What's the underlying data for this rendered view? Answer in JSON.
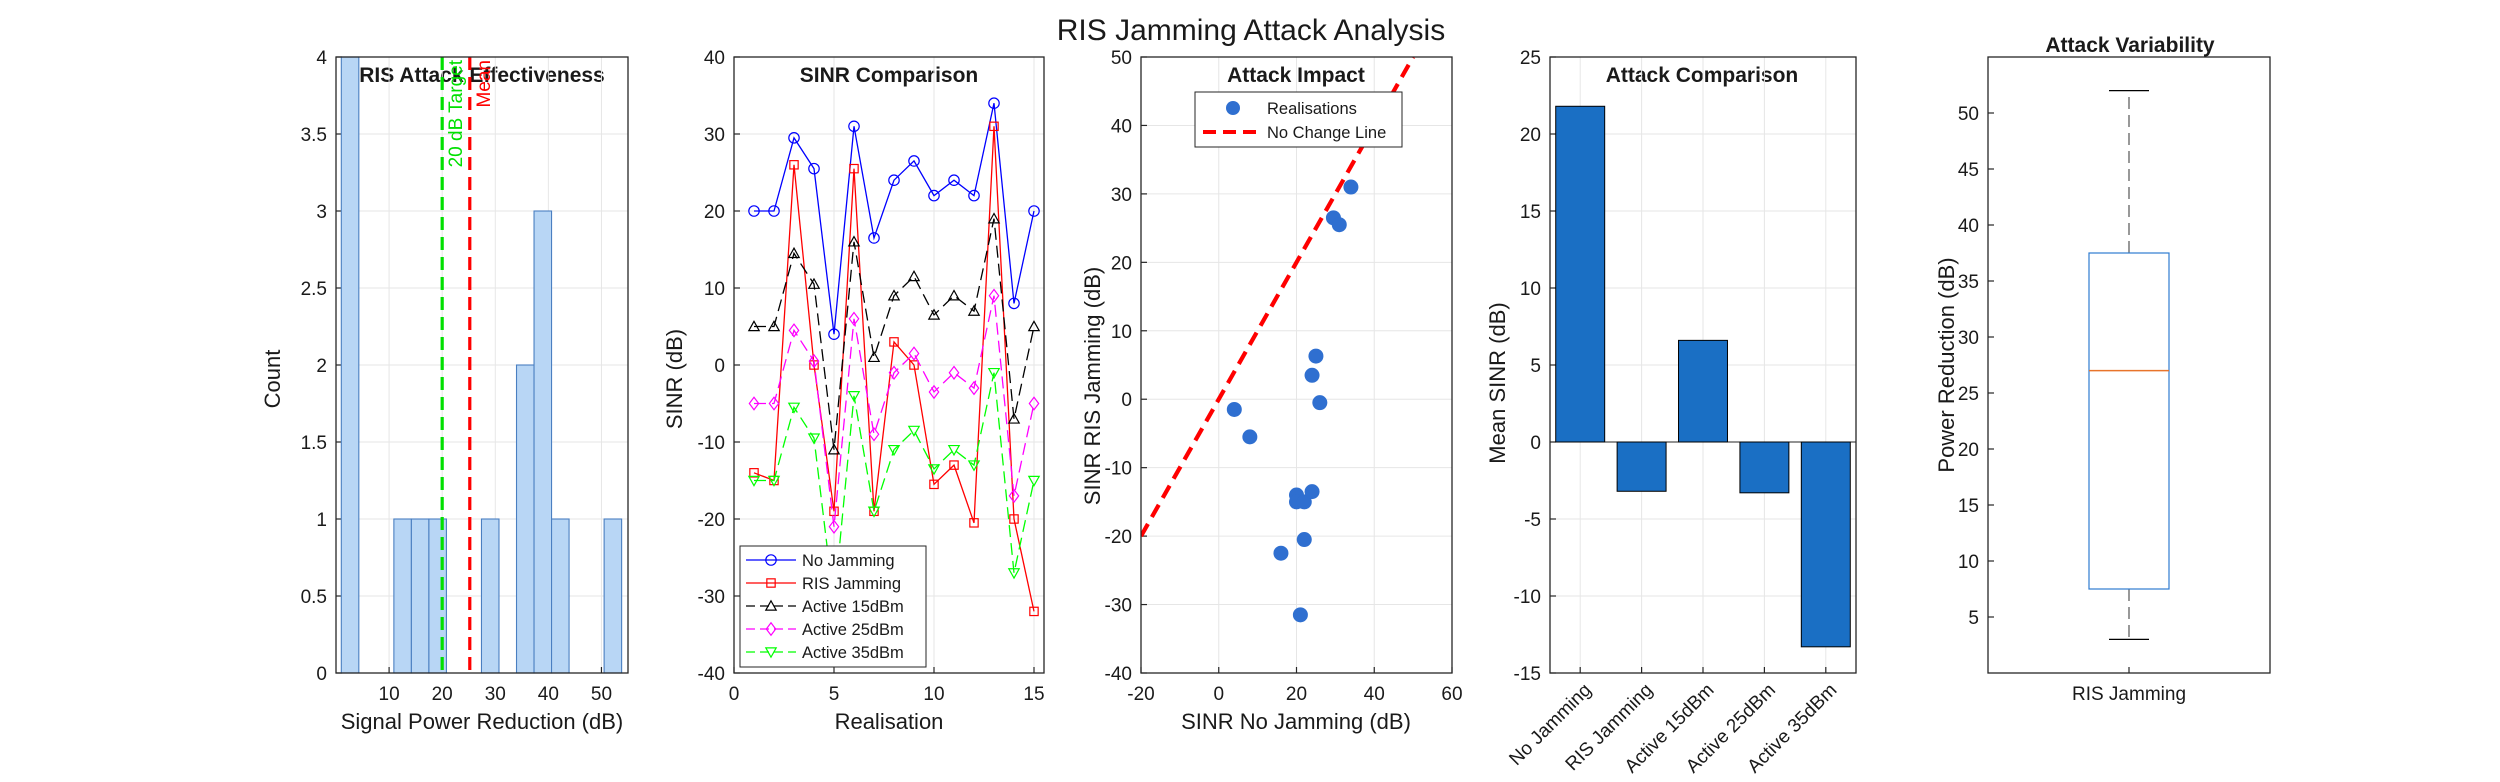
{
  "figure_title": "RIS Jamming Attack Analysis",
  "chart_data": [
    {
      "type": "bar",
      "subtype": "histogram",
      "title": "RIS Attack Effectiveness",
      "xlabel": "Signal Power Reduction (dB)",
      "ylabel": "Count",
      "xlim": [
        0,
        55
      ],
      "ylim": [
        0,
        4
      ],
      "xticks": [
        10,
        20,
        30,
        40,
        50
      ],
      "yticks": [
        0,
        0.5,
        1,
        1.5,
        2,
        2.5,
        3,
        3.5,
        4
      ],
      "bin_width": 3.3,
      "bins": [
        {
          "start": 1.0,
          "count": 4
        },
        {
          "start": 4.3,
          "count": 0
        },
        {
          "start": 7.6,
          "count": 0
        },
        {
          "start": 10.9,
          "count": 1
        },
        {
          "start": 14.2,
          "count": 1
        },
        {
          "start": 17.5,
          "count": 1
        },
        {
          "start": 20.8,
          "count": 0
        },
        {
          "start": 24.1,
          "count": 0
        },
        {
          "start": 27.4,
          "count": 1
        },
        {
          "start": 30.7,
          "count": 0
        },
        {
          "start": 34.0,
          "count": 2
        },
        {
          "start": 37.3,
          "count": 3
        },
        {
          "start": 40.6,
          "count": 1
        },
        {
          "start": 43.9,
          "count": 0
        },
        {
          "start": 47.2,
          "count": 0
        },
        {
          "start": 50.5,
          "count": 1
        }
      ],
      "vlines": [
        {
          "x": 20,
          "label": "20 dB Target",
          "color": "#00e000"
        },
        {
          "x": 25.2,
          "label": "Mean",
          "color": "#ff0000"
        }
      ],
      "colors": {
        "bar_fill": "#b8d6f5",
        "bar_edge": "#4a7fc1"
      },
      "grid": true
    },
    {
      "type": "line",
      "title": "SINR Comparison",
      "xlabel": "Realisation",
      "ylabel": "SINR (dB)",
      "xlim": [
        0,
        15.5
      ],
      "ylim": [
        -40,
        40
      ],
      "xticks": [
        0,
        5,
        10,
        15
      ],
      "yticks": [
        -40,
        -30,
        -20,
        -10,
        0,
        10,
        20,
        30,
        40
      ],
      "x": [
        1,
        2,
        3,
        4,
        5,
        6,
        7,
        8,
        9,
        10,
        11,
        12,
        13,
        14,
        15
      ],
      "series": [
        {
          "name": "No Jamming",
          "values": [
            20,
            20,
            29.5,
            25.5,
            4,
            31,
            16.5,
            24,
            26.5,
            22,
            24,
            22,
            34,
            8,
            20
          ],
          "color": "#0000ff",
          "dash": "",
          "marker": "circle"
        },
        {
          "name": "RIS Jamming",
          "values": [
            -14,
            -15,
            26,
            0,
            -19,
            25.5,
            -19,
            3,
            0,
            -15.5,
            -13,
            -20.5,
            31,
            -20,
            -32
          ],
          "color": "#ff0000",
          "dash": "",
          "marker": "square"
        },
        {
          "name": "Active 15dBm",
          "values": [
            5,
            5,
            14.5,
            10.5,
            -11,
            16,
            1,
            9,
            11.5,
            6.5,
            9,
            7,
            19,
            -7,
            5
          ],
          "color": "#000000",
          "dash": "12,6",
          "marker": "triangle-up"
        },
        {
          "name": "Active 25dBm",
          "values": [
            -5,
            -5,
            4.5,
            0.5,
            -21,
            6,
            -9,
            -1,
            1.5,
            -3.5,
            -1,
            -3,
            9,
            -17,
            -5
          ],
          "color": "#ff00ff",
          "dash": "12,6",
          "marker": "diamond"
        },
        {
          "name": "Active 35dBm",
          "values": [
            -15,
            -15,
            -5.5,
            -9.5,
            -31,
            -4,
            -19,
            -11,
            -8.5,
            -13.5,
            -11,
            -13,
            -1,
            -27,
            -15
          ],
          "color": "#00ff00",
          "dash": "12,6",
          "marker": "triangle-down"
        }
      ],
      "legend": "bottom-left",
      "grid": true
    },
    {
      "type": "scatter",
      "title": "Attack Impact",
      "xlabel": "SINR No Jamming (dB)",
      "ylabel": "SINR RIS Jamming (dB)",
      "xlim": [
        -20,
        60
      ],
      "ylim": [
        -40,
        50
      ],
      "xticks": [
        -20,
        0,
        20,
        40,
        60
      ],
      "yticks": [
        -40,
        -30,
        -20,
        -10,
        0,
        10,
        20,
        30,
        40,
        50
      ],
      "series": [
        {
          "name": "Realisations",
          "color": "#2f6fd0",
          "points": [
            [
              4,
              -1.5
            ],
            [
              8,
              -5.5
            ],
            [
              16,
              -22.5
            ],
            [
              20,
              -14
            ],
            [
              20,
              -15
            ],
            [
              21,
              -31.5
            ],
            [
              22,
              -20.5
            ],
            [
              22,
              -15
            ],
            [
              24,
              -13.5
            ],
            [
              24,
              3.5
            ],
            [
              25,
              6.3
            ],
            [
              26,
              -0.5
            ],
            [
              29.5,
              26.5
            ],
            [
              31,
              25.5
            ],
            [
              34,
              31
            ]
          ]
        },
        {
          "name": "No Change Line",
          "color": "#ff0000",
          "dash": "14,8",
          "line": [
            [
              -20,
              -20
            ],
            [
              50,
              50
            ]
          ]
        }
      ],
      "legend": "top",
      "grid": true
    },
    {
      "type": "bar",
      "title": "Attack Comparison",
      "xlabel": "",
      "ylabel": "Mean SINR (dB)",
      "ylim": [
        -15,
        25
      ],
      "yticks": [
        -15,
        -10,
        -5,
        0,
        5,
        10,
        15,
        20,
        25
      ],
      "categories": [
        "No Jamming",
        "RIS Jamming",
        "Active 15dBm",
        "Active 25dBm",
        "Active 35dBm"
      ],
      "values": [
        21.8,
        -3.2,
        6.6,
        -3.3,
        -13.3
      ],
      "color": "#1a6fc4",
      "grid": true
    },
    {
      "type": "box",
      "title": "Attack Variability",
      "xlabel": "",
      "ylabel": "Power Reduction (dB)",
      "ylim": [
        0,
        55
      ],
      "yticks": [
        5,
        10,
        15,
        20,
        25,
        30,
        35,
        40,
        45,
        50
      ],
      "categories": [
        "RIS Jamming"
      ],
      "box": {
        "min": 3,
        "q1": 7.5,
        "median": 27,
        "q3": 37.5,
        "max": 52
      },
      "colors": {
        "box": "#2e7bd0",
        "median": "#e8742b",
        "whisker": "#555555"
      },
      "grid": false
    }
  ]
}
